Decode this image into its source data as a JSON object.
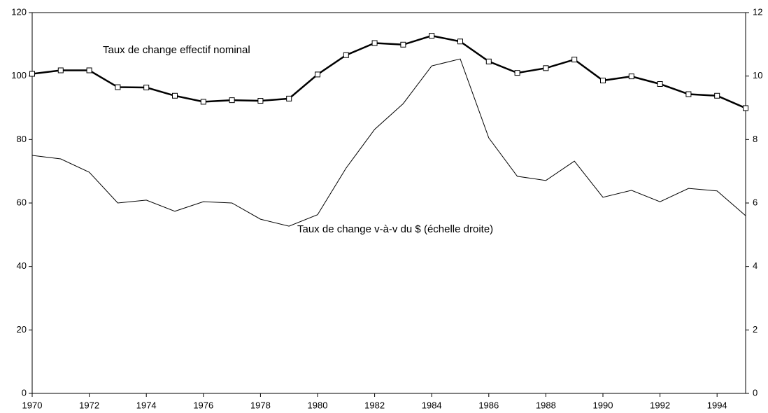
{
  "chart_data": {
    "type": "line",
    "x": [
      1970,
      1971,
      1972,
      1973,
      1974,
      1975,
      1976,
      1977,
      1978,
      1979,
      1980,
      1981,
      1982,
      1983,
      1984,
      1985,
      1986,
      1987,
      1988,
      1989,
      1990,
      1991,
      1992,
      1993,
      1994,
      1995
    ],
    "series": [
      {
        "name": "Taux de change effectif nominal",
        "color": "#000000",
        "marker": "square",
        "values": [
          100.7,
          101.8,
          101.8,
          96.5,
          96.4,
          93.8,
          91.9,
          92.4,
          92.2,
          92.9,
          100.5,
          106.6,
          110.4,
          109.9,
          112.7,
          110.9,
          104.6,
          101.0,
          102.5,
          105.2,
          98.6,
          99.9,
          97.5,
          94.3,
          93.8,
          89.9
        ]
      },
      {
        "name": "Taux de change v-à-v du $ (échelle droite)",
        "color": "#000000",
        "axis": "y2",
        "values": [
          7.5,
          7.39,
          6.97,
          6.0,
          6.09,
          5.74,
          6.04,
          6.0,
          5.49,
          5.27,
          5.63,
          7.1,
          8.32,
          9.13,
          10.32,
          10.54,
          8.05,
          6.84,
          6.71,
          7.32,
          6.18,
          6.4,
          6.04,
          6.46,
          6.38,
          5.6
        ]
      }
    ],
    "annotations": [
      "Taux de change effectif nominal",
      "Taux de change v-à-v du $ (échelle droite)"
    ],
    "xlim": [
      1970,
      1995
    ],
    "xticks": [
      1970,
      1972,
      1974,
      1976,
      1978,
      1980,
      1982,
      1984,
      1986,
      1988,
      1990,
      1992,
      1994
    ],
    "ylim": [
      0,
      120
    ],
    "yticks": [
      0,
      20,
      40,
      60,
      80,
      100,
      120
    ],
    "y2lim": [
      0,
      12
    ],
    "y2ticks": [
      0,
      2,
      4,
      6,
      8,
      10,
      12
    ],
    "grid": false
  }
}
